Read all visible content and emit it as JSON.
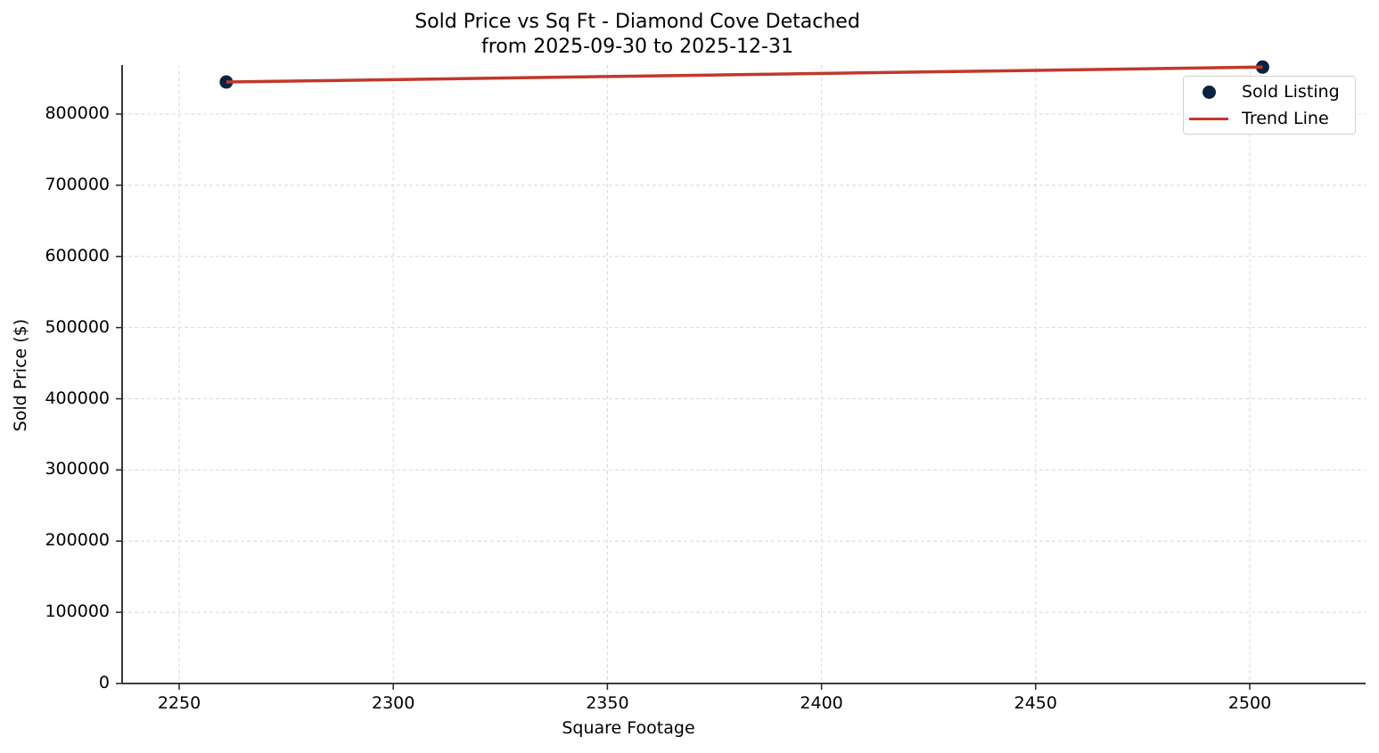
{
  "chart_data": {
    "type": "scatter",
    "title": "Sold Price vs Sq Ft - Diamond Cove Detached",
    "subtitle": "from 2025-09-30 to 2025-12-31",
    "xlabel": "Square Footage",
    "ylabel": "Sold Price ($)",
    "xlim": [
      2236,
      2528
    ],
    "ylim": [
      0,
      870000
    ],
    "x_ticks": [
      "2250",
      "2300",
      "2350",
      "2400",
      "2450",
      "2500"
    ],
    "y_ticks": [
      "0",
      "100000",
      "200000",
      "300000",
      "400000",
      "500000",
      "600000",
      "700000",
      "800000"
    ],
    "grid": true,
    "legend_position": "upper right",
    "series": [
      {
        "name": "Sold Listing",
        "kind": "scatter",
        "color": "#0b2341",
        "points": [
          {
            "x": 2261,
            "y": 845000
          },
          {
            "x": 2503,
            "y": 866000
          }
        ]
      },
      {
        "name": "Trend Line",
        "kind": "line",
        "color": "#c0392b",
        "points": [
          {
            "x": 2261,
            "y": 845000
          },
          {
            "x": 2503,
            "y": 866000
          }
        ]
      }
    ]
  },
  "legend": {
    "items": [
      {
        "label": "Sold Listing"
      },
      {
        "label": "Trend Line"
      }
    ]
  }
}
